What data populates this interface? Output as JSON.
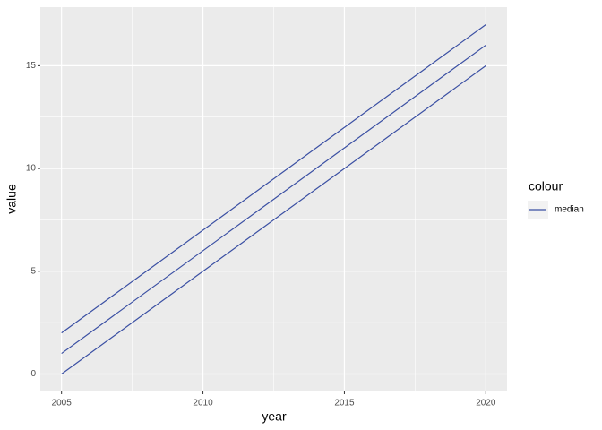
{
  "chart_data": {
    "type": "line",
    "x_label": "year",
    "y_label": "value",
    "legend_title": "colour",
    "x": [
      2005,
      2020
    ],
    "series": [
      {
        "name": "median",
        "color": "#3a4fa3",
        "values": [
          1,
          16
        ]
      },
      {
        "color": "#3a4fa3",
        "values": [
          0,
          15
        ]
      },
      {
        "color": "#3a4fa3",
        "values": [
          2,
          17
        ]
      }
    ],
    "xlim": [
      2004.25,
      2020.75
    ],
    "ylim": [
      -0.85,
      17.85
    ],
    "xticks": [
      2005,
      2010,
      2015,
      2020
    ],
    "yticks": [
      0,
      5,
      10,
      15
    ],
    "grid": true
  }
}
